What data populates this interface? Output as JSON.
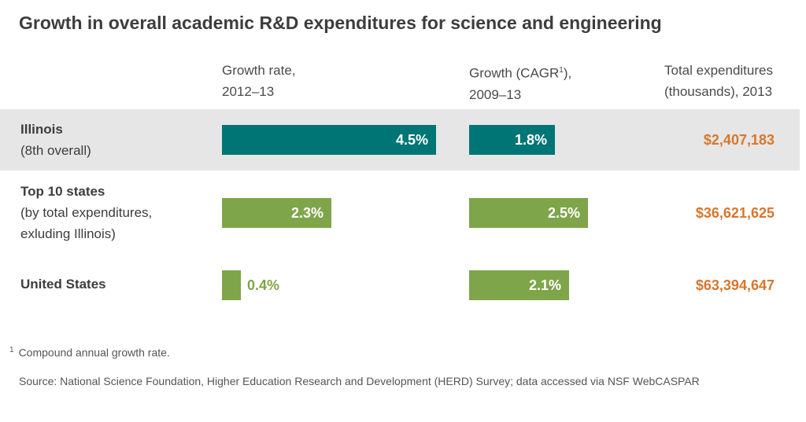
{
  "title": "Growth in overall academic R&D expenditures for science and engineering",
  "headers": {
    "col1_line1": "Growth rate,",
    "col1_line2": "2012–13",
    "col2_line1_a": "Growth (CAGR",
    "col2_sup": "1",
    "col2_line1_b": "),",
    "col2_line2": "2009–13",
    "col3_line1": "Total expenditures",
    "col3_line2": "(thousands), 2013"
  },
  "rows": [
    {
      "main": "Illinois",
      "sub1": "(8th overall)",
      "sub2": "",
      "total": "$2,407,183",
      "shaded": true,
      "color": "#007575"
    },
    {
      "main": "Top 10 states",
      "sub1": "(by total expenditures,",
      "sub2": "exluding Illinois)",
      "total": "$36,621,625",
      "shaded": false,
      "color": "#7fa54a"
    },
    {
      "main": "United States",
      "sub1": "",
      "sub2": "",
      "total": "$63,394,647",
      "shaded": false,
      "color": "#7fa54a"
    }
  ],
  "chart_data": {
    "type": "bar",
    "categories": [
      "Illinois",
      "Top 10 states",
      "United States"
    ],
    "series": [
      {
        "name": "Growth rate, 2012–13",
        "values": [
          4.5,
          2.3,
          0.4
        ],
        "labels": [
          "4.5%",
          "2.3%",
          "0.4%"
        ]
      },
      {
        "name": "Growth (CAGR), 2009–13",
        "values": [
          1.8,
          2.5,
          2.1
        ],
        "labels": [
          "1.8%",
          "2.5%",
          "2.1%"
        ]
      }
    ],
    "totals": [
      "$2,407,183",
      "$36,621,625",
      "$63,394,647"
    ],
    "colors": {
      "illinois": "#007575",
      "others": "#7fa54a",
      "total_text": "#d9762b"
    }
  },
  "footnote": {
    "marker": "1",
    "text": "Compound annual growth rate."
  },
  "source": "Source: National Science Foundation, Higher Education Research and Development (HERD) Survey; data accessed via NSF WebCASPAR"
}
